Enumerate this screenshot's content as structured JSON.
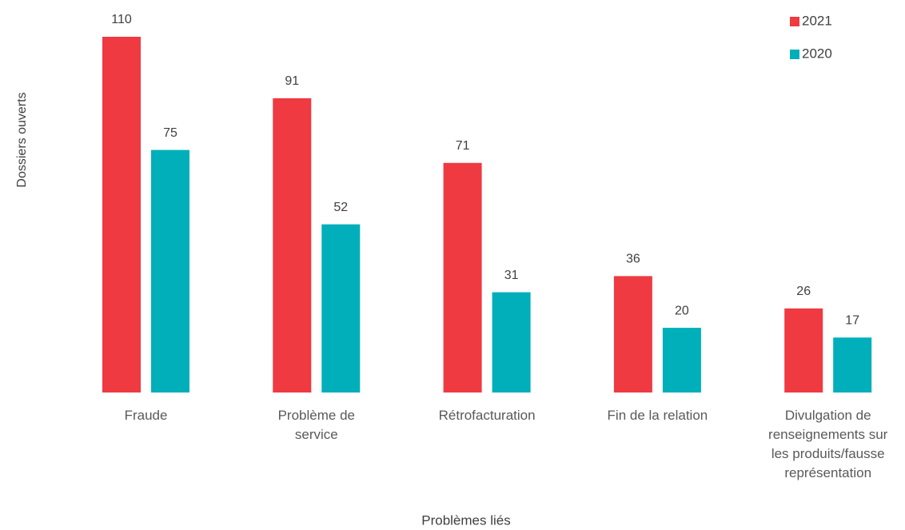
{
  "chart_data": {
    "type": "bar",
    "x_label": "Problèmes liés",
    "y_label": "Dossiers ouverts",
    "categories": [
      "Fraude",
      "Problème de service",
      "Rétrofacturation",
      "Fin de la relation",
      "Divulgation de renseignements sur les produits/fausse représentation"
    ],
    "series": [
      {
        "name": "2021",
        "color": "#ef3a42",
        "values": [
          110,
          91,
          71,
          36,
          26
        ]
      },
      {
        "name": "2020",
        "color": "#00afba",
        "values": [
          75,
          52,
          31,
          20,
          17
        ]
      }
    ],
    "legend": "top-right"
  }
}
